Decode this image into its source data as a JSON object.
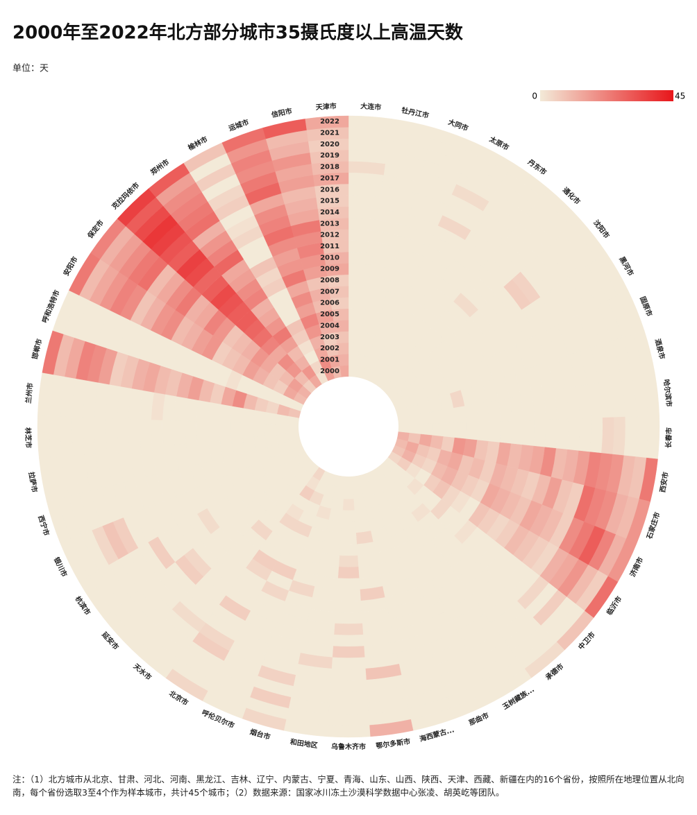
{
  "chart_data": {
    "type": "radial_heatmap",
    "title": "2000年至2022年北方部分城市35摄氏度以上高温天数",
    "subtitle": "单位：天",
    "note": "注：（1）北方城市从北京、甘肃、河北、河南、黑龙江、吉林、辽宁、内蒙古、宁夏、青海、山东、山西、陕西、天津、西藏、新疆在内的16个省份，按照所在地理位置从北向南，每个省份选取3至4个作为样本城市，共计45个城市；（2）数据来源：国家冰川冻土沙漠科学数据中心张凌、胡英屹等团队。",
    "colorbar": {
      "range": [
        0,
        45
      ],
      "colors": [
        "#f3ead8",
        "#e8161b"
      ]
    },
    "years": [
      2000,
      2001,
      2002,
      2003,
      2004,
      2005,
      2006,
      2007,
      2008,
      2009,
      2010,
      2011,
      2012,
      2013,
      2014,
      2015,
      2016,
      2017,
      2018,
      2019,
      2020,
      2021,
      2022
    ],
    "categories": [
      "大连市",
      "牡丹江市",
      "大同市",
      "太原市",
      "丹东市",
      "通化市",
      "沈阳市",
      "黑河市",
      "固原市",
      "酒泉市",
      "哈尔滨市",
      "长春市",
      "西安市",
      "石家庄市",
      "济南市",
      "临沂市",
      "中卫市",
      "承德市",
      "玉树藏族...",
      "那曲市",
      "海西蒙古...",
      "鄂尔多斯市",
      "乌鲁木齐市",
      "和田地区",
      "烟台市",
      "呼伦贝尔市",
      "北京市",
      "天水市",
      "延安市",
      "杭滨市",
      "银川市",
      "西宁市",
      "拉萨市",
      "林芝市",
      "兰州市",
      "邯郸市",
      "呼和浩特市",
      "安阳市",
      "保定市",
      "克拉玛依市",
      "郑州市",
      "榆林市",
      "运城市",
      "信阳市",
      "天津市"
    ],
    "values": [
      [
        0,
        0,
        0,
        0,
        0,
        0,
        0,
        0,
        0,
        0,
        0,
        0,
        0,
        0,
        0,
        0,
        0,
        0,
        3,
        0,
        0,
        0,
        0
      ],
      [
        0,
        0,
        0,
        0,
        0,
        0,
        0,
        0,
        0,
        0,
        0,
        0,
        0,
        0,
        0,
        0,
        0,
        0,
        0,
        0,
        0,
        0,
        0
      ],
      [
        0,
        0,
        0,
        0,
        0,
        0,
        0,
        0,
        0,
        0,
        0,
        0,
        0,
        0,
        0,
        0,
        0,
        0,
        0,
        0,
        0,
        0,
        0
      ],
      [
        0,
        0,
        0,
        0,
        0,
        0,
        0,
        0,
        0,
        0,
        0,
        0,
        0,
        0,
        0,
        4,
        0,
        0,
        3,
        0,
        0,
        0,
        0
      ],
      [
        0,
        0,
        0,
        0,
        0,
        0,
        0,
        0,
        0,
        0,
        0,
        0,
        0,
        0,
        0,
        0,
        0,
        0,
        0,
        0,
        0,
        0,
        0
      ],
      [
        0,
        0,
        0,
        0,
        0,
        0,
        0,
        0,
        0,
        0,
        3,
        0,
        0,
        0,
        0,
        0,
        0,
        0,
        0,
        0,
        0,
        0,
        0
      ],
      [
        0,
        0,
        0,
        0,
        0,
        0,
        0,
        0,
        0,
        0,
        0,
        0,
        0,
        0,
        6,
        5,
        0,
        0,
        0,
        0,
        0,
        0,
        0
      ],
      [
        0,
        0,
        0,
        0,
        0,
        0,
        0,
        0,
        0,
        0,
        0,
        0,
        0,
        0,
        0,
        0,
        0,
        0,
        0,
        0,
        0,
        0,
        0
      ],
      [
        0,
        0,
        0,
        0,
        0,
        0,
        0,
        0,
        0,
        0,
        0,
        0,
        0,
        0,
        0,
        0,
        0,
        0,
        0,
        0,
        0,
        0,
        0
      ],
      [
        0,
        0,
        0,
        0,
        0,
        4,
        0,
        0,
        0,
        0,
        0,
        0,
        0,
        0,
        0,
        0,
        0,
        0,
        0,
        0,
        0,
        0,
        0
      ],
      [
        0,
        0,
        0,
        0,
        0,
        0,
        0,
        0,
        0,
        0,
        0,
        0,
        0,
        0,
        0,
        0,
        0,
        0,
        0,
        0,
        0,
        0,
        0
      ],
      [
        0,
        0,
        0,
        0,
        0,
        0,
        0,
        0,
        0,
        0,
        0,
        0,
        0,
        0,
        0,
        0,
        0,
        0,
        4,
        3,
        0,
        0,
        0
      ],
      [
        12,
        8,
        14,
        10,
        6,
        18,
        16,
        8,
        6,
        14,
        10,
        12,
        14,
        20,
        10,
        12,
        16,
        22,
        20,
        18,
        10,
        8,
        24
      ],
      [
        10,
        14,
        8,
        6,
        12,
        14,
        8,
        10,
        6,
        12,
        10,
        8,
        6,
        10,
        16,
        8,
        6,
        26,
        22,
        20,
        12,
        10,
        18
      ],
      [
        8,
        12,
        6,
        4,
        10,
        12,
        8,
        6,
        4,
        14,
        12,
        10,
        8,
        14,
        12,
        10,
        6,
        20,
        24,
        30,
        22,
        12,
        18
      ],
      [
        4,
        6,
        2,
        0,
        6,
        8,
        4,
        2,
        0,
        8,
        6,
        4,
        6,
        10,
        8,
        6,
        4,
        12,
        14,
        18,
        10,
        6,
        26
      ],
      [
        0,
        0,
        0,
        2,
        0,
        0,
        4,
        0,
        0,
        2,
        0,
        0,
        0,
        0,
        0,
        0,
        0,
        4,
        0,
        6,
        0,
        0,
        8
      ],
      [
        0,
        0,
        0,
        0,
        0,
        2,
        0,
        0,
        0,
        0,
        0,
        0,
        0,
        0,
        0,
        0,
        0,
        0,
        0,
        0,
        0,
        0,
        3
      ],
      [
        0,
        0,
        0,
        0,
        0,
        0,
        0,
        0,
        0,
        0,
        0,
        0,
        0,
        0,
        0,
        0,
        0,
        0,
        0,
        0,
        0,
        0,
        0
      ],
      [
        0,
        0,
        0,
        0,
        0,
        0,
        0,
        0,
        0,
        0,
        0,
        0,
        0,
        0,
        0,
        0,
        0,
        0,
        0,
        0,
        0,
        0,
        0
      ],
      [
        0,
        0,
        0,
        0,
        0,
        0,
        0,
        0,
        0,
        0,
        0,
        0,
        0,
        0,
        0,
        0,
        0,
        0,
        0,
        0,
        0,
        0,
        0
      ],
      [
        0,
        0,
        0,
        0,
        0,
        4,
        0,
        0,
        0,
        0,
        6,
        0,
        0,
        0,
        0,
        0,
        0,
        8,
        0,
        0,
        0,
        0,
        12
      ],
      [
        0,
        0,
        2,
        0,
        0,
        0,
        0,
        3,
        6,
        0,
        0,
        0,
        0,
        4,
        0,
        6,
        0,
        0,
        0,
        0,
        0,
        0,
        0
      ],
      [
        0,
        0,
        0,
        0,
        0,
        0,
        0,
        0,
        0,
        0,
        0,
        0,
        0,
        0,
        0,
        0,
        4,
        0,
        0,
        0,
        0,
        0,
        0
      ],
      [
        0,
        0,
        0,
        2,
        0,
        0,
        0,
        0,
        0,
        0,
        4,
        0,
        0,
        0,
        0,
        0,
        0,
        0,
        5,
        0,
        6,
        0,
        4
      ],
      [
        0,
        0,
        3,
        0,
        0,
        4,
        0,
        0,
        0,
        6,
        0,
        4,
        0,
        0,
        0,
        0,
        0,
        0,
        0,
        0,
        0,
        0,
        0
      ],
      [
        4,
        2,
        6,
        0,
        2,
        4,
        0,
        0,
        0,
        6,
        4,
        0,
        0,
        0,
        6,
        0,
        0,
        4,
        6,
        0,
        0,
        0,
        4
      ],
      [
        0,
        0,
        0,
        0,
        0,
        0,
        0,
        4,
        0,
        0,
        0,
        0,
        0,
        0,
        0,
        0,
        0,
        3,
        0,
        0,
        0,
        0,
        0
      ],
      [
        0,
        0,
        0,
        0,
        0,
        0,
        0,
        0,
        0,
        0,
        0,
        0,
        0,
        4,
        6,
        0,
        0,
        0,
        0,
        0,
        0,
        0,
        0
      ],
      [
        0,
        0,
        0,
        0,
        0,
        0,
        0,
        0,
        0,
        0,
        3,
        0,
        0,
        0,
        0,
        6,
        0,
        0,
        0,
        0,
        0,
        0,
        0
      ],
      [
        0,
        0,
        0,
        0,
        0,
        0,
        0,
        0,
        0,
        0,
        0,
        0,
        0,
        0,
        0,
        0,
        0,
        6,
        8,
        4,
        0,
        0,
        0
      ],
      [
        0,
        0,
        0,
        0,
        0,
        0,
        0,
        0,
        0,
        0,
        0,
        0,
        0,
        0,
        0,
        0,
        0,
        0,
        0,
        0,
        0,
        0,
        0
      ],
      [
        0,
        0,
        0,
        0,
        0,
        0,
        0,
        0,
        0,
        0,
        0,
        0,
        0,
        0,
        0,
        0,
        0,
        0,
        0,
        0,
        0,
        0,
        0
      ],
      [
        0,
        0,
        0,
        0,
        0,
        0,
        0,
        0,
        0,
        0,
        0,
        0,
        0,
        0,
        0,
        0,
        0,
        0,
        0,
        0,
        0,
        0,
        0
      ],
      [
        0,
        0,
        0,
        0,
        0,
        0,
        0,
        0,
        0,
        0,
        0,
        0,
        2,
        0,
        0,
        0,
        0,
        0,
        0,
        0,
        0,
        0,
        0
      ],
      [
        8,
        10,
        4,
        6,
        10,
        20,
        14,
        6,
        10,
        16,
        12,
        8,
        10,
        14,
        12,
        8,
        6,
        16,
        20,
        22,
        14,
        10,
        24
      ],
      [
        0,
        0,
        0,
        0,
        0,
        0,
        2,
        0,
        0,
        0,
        0,
        0,
        0,
        0,
        0,
        0,
        0,
        0,
        0,
        0,
        0,
        0,
        0
      ],
      [
        10,
        14,
        6,
        8,
        12,
        16,
        10,
        8,
        6,
        18,
        16,
        12,
        10,
        20,
        18,
        12,
        8,
        20,
        22,
        18,
        14,
        10,
        24
      ],
      [
        12,
        16,
        10,
        8,
        14,
        18,
        12,
        10,
        8,
        18,
        22,
        14,
        12,
        24,
        20,
        14,
        10,
        26,
        24,
        20,
        16,
        12,
        22
      ],
      [
        6,
        10,
        18,
        20,
        14,
        22,
        26,
        28,
        30,
        30,
        32,
        34,
        30,
        28,
        34,
        36,
        30,
        32,
        36,
        38,
        34,
        30,
        36
      ],
      [
        14,
        18,
        12,
        10,
        16,
        24,
        18,
        14,
        12,
        22,
        20,
        16,
        14,
        28,
        22,
        18,
        12,
        26,
        24,
        22,
        20,
        16,
        30
      ],
      [
        2,
        4,
        0,
        2,
        6,
        8,
        0,
        0,
        0,
        6,
        4,
        8,
        0,
        0,
        4,
        2,
        0,
        6,
        4,
        0,
        6,
        0,
        8
      ],
      [
        16,
        20,
        14,
        12,
        18,
        22,
        16,
        20,
        14,
        24,
        18,
        16,
        20,
        26,
        22,
        20,
        14,
        28,
        24,
        20,
        22,
        18,
        26
      ],
      [
        10,
        14,
        8,
        6,
        12,
        16,
        10,
        12,
        8,
        16,
        18,
        22,
        20,
        24,
        14,
        12,
        10,
        16,
        14,
        18,
        12,
        10,
        30
      ],
      [
        14,
        12,
        10,
        8,
        12,
        10,
        6,
        8,
        6,
        14,
        12,
        8,
        8,
        10,
        8,
        6,
        6,
        14,
        10,
        8,
        6,
        8,
        14
      ]
    ]
  }
}
